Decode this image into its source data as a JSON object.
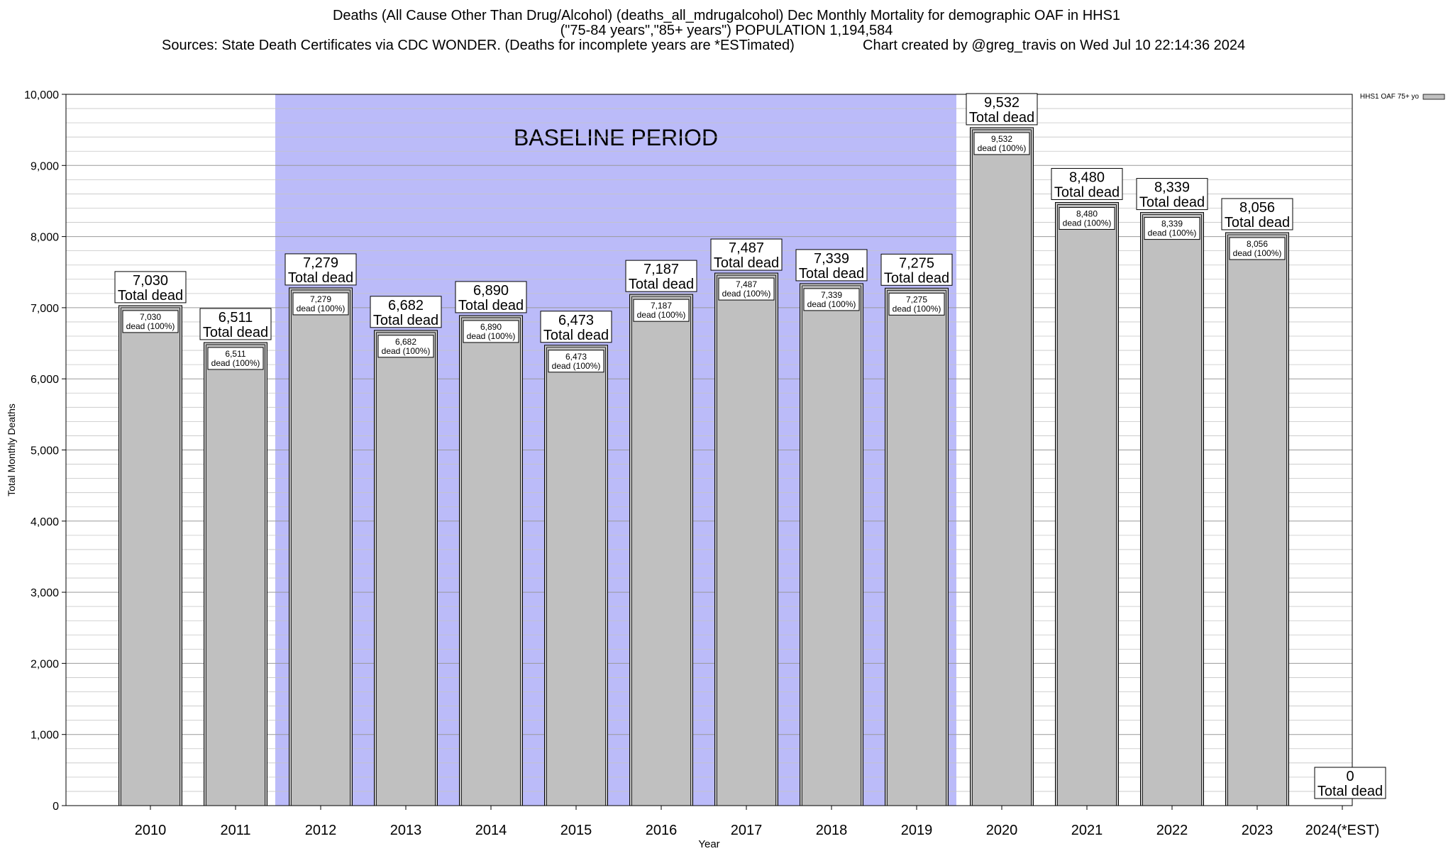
{
  "header": {
    "title_line1": "Deaths (All Cause Other Than Drug/Alcohol) (deaths_all_mdrugalcohol) Dec Monthly Mortality for demographic OAF in HHS1",
    "title_line2": "(\"75-84 years\",\"85+ years\") POPULATION 1,194,584",
    "sources": "Sources: State Death Certificates via CDC WONDER. (Deaths for incomplete years are *ESTimated)",
    "credit": "Chart created by @greg_travis on Wed Jul 10 22:14:36 2024"
  },
  "chart_data": {
    "type": "bar",
    "xlabel": "Year",
    "ylabel": "Total Monthly Deaths",
    "ylim": [
      0,
      10000
    ],
    "yticks": [
      "0",
      "1,000",
      "2,000",
      "3,000",
      "4,000",
      "5,000",
      "6,000",
      "7,000",
      "8,000",
      "9,000",
      "10,000"
    ],
    "categories": [
      "2010",
      "2011",
      "2012",
      "2013",
      "2014",
      "2015",
      "2016",
      "2017",
      "2018",
      "2019",
      "2020",
      "2021",
      "2022",
      "2023",
      "2024(*EST)"
    ],
    "series": [
      {
        "name": "HHS1 OAF 75+ yo",
        "values": [
          7030,
          6511,
          7279,
          6682,
          6890,
          6473,
          7187,
          7487,
          7339,
          7275,
          9532,
          8480,
          8339,
          8056,
          0
        ],
        "color": "#c0c0c0"
      }
    ],
    "top_labels": [
      "7,030",
      "6,511",
      "7,279",
      "6,682",
      "6,890",
      "6,473",
      "7,187",
      "7,487",
      "7,339",
      "7,275",
      "9,532",
      "8,480",
      "8,339",
      "8,056",
      "0"
    ],
    "top_label_suffix": "Total dead",
    "inner_labels": [
      "7,030",
      "6,511",
      "7,279",
      "6,682",
      "6,890",
      "6,473",
      "7,187",
      "7,487",
      "7,339",
      "7,275",
      "9,532",
      "8,480",
      "8,339",
      "8,056",
      ""
    ],
    "inner_label_suffix": "dead (100%)",
    "baseline": {
      "label": "BASELINE PERIOD",
      "from": "2012",
      "to": "2019",
      "color": "#bbbbf9"
    },
    "grid": true,
    "legend_position": "top-right"
  }
}
